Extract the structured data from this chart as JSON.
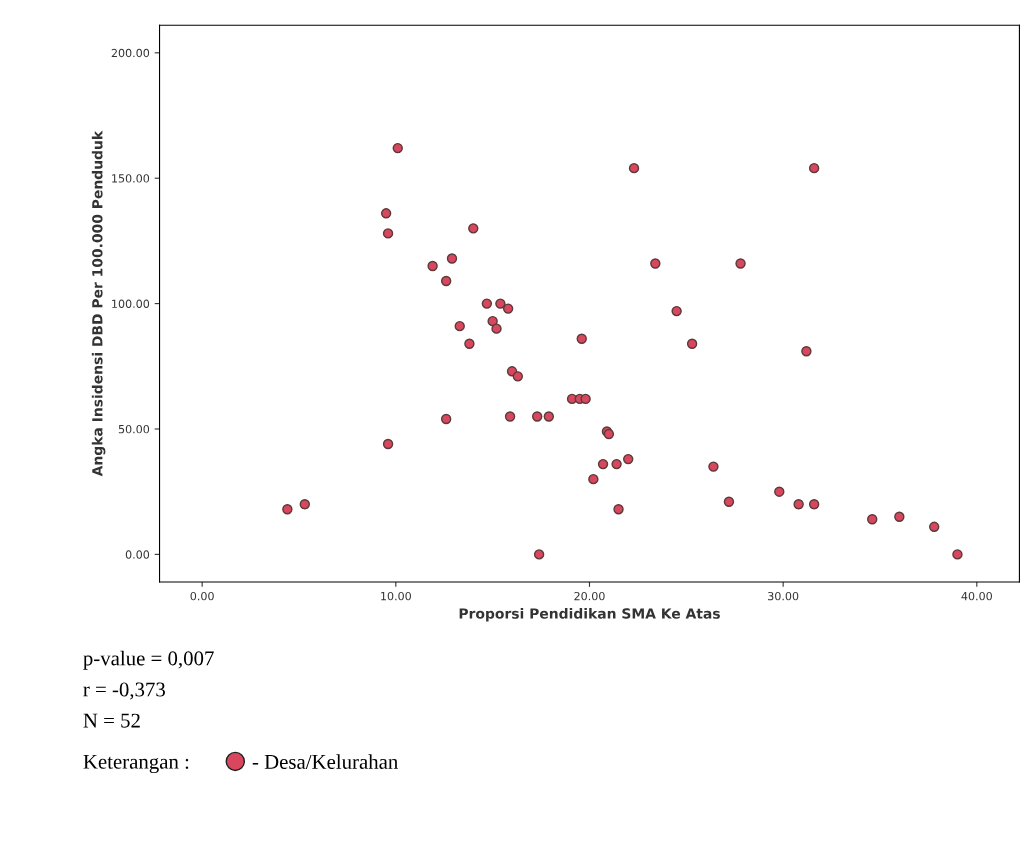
{
  "chart_data": {
    "type": "scatter",
    "xlabel": "Proporsi Pendidikan SMA Ke Atas",
    "ylabel": "Angka Insidensi DBD Per 100.000 Penduduk",
    "xlim": [
      -2.2,
      42.2
    ],
    "ylim": [
      -11,
      211
    ],
    "xticks": [
      {
        "value": 0,
        "label": "0.00"
      },
      {
        "value": 10,
        "label": "10.00"
      },
      {
        "value": 20,
        "label": "20.00"
      },
      {
        "value": 30,
        "label": "30.00"
      },
      {
        "value": 40,
        "label": "40.00"
      }
    ],
    "yticks": [
      {
        "value": 0,
        "label": "0.00"
      },
      {
        "value": 50,
        "label": "50.00"
      },
      {
        "value": 100,
        "label": "100.00"
      },
      {
        "value": 150,
        "label": "150.00"
      },
      {
        "value": 200,
        "label": "200.00"
      }
    ],
    "grid": false,
    "marker": "circle",
    "legend": "bottom left",
    "legend_title": "Keterangan :",
    "annotations": [
      "p-value = 0,007",
      "r = -0,373",
      "N = 52"
    ],
    "series": [
      {
        "name": "- Desa/Kelurahan",
        "color": "#d9475f",
        "x": [
          4.4,
          5.3,
          9.6,
          9.5,
          9.6,
          10.1,
          11.9,
          12.6,
          12.9,
          12.6,
          13.3,
          13.8,
          14.0,
          14.7,
          15.4,
          15.8,
          15.0,
          15.2,
          16.0,
          16.3,
          15.9,
          17.3,
          17.9,
          17.4,
          19.1,
          19.5,
          19.8,
          19.6,
          20.2,
          20.7,
          20.9,
          21.0,
          21.4,
          21.5,
          22.0,
          22.3,
          23.4,
          24.5,
          25.3,
          26.4,
          27.2,
          27.8,
          29.8,
          30.8,
          31.2,
          31.6,
          31.6,
          34.6,
          36.0,
          37.8,
          39.0
        ],
        "values": [
          18,
          20,
          44,
          136,
          128,
          162,
          115,
          109,
          118,
          54,
          91,
          84,
          130,
          100,
          100,
          98,
          93,
          90,
          73,
          71,
          55,
          55,
          55,
          0,
          62,
          62,
          62,
          86,
          30,
          36,
          49,
          48,
          36,
          18,
          38,
          154,
          116,
          97,
          84,
          35,
          21,
          116,
          25,
          20,
          81,
          20,
          154,
          14,
          15,
          11,
          0
        ]
      }
    ]
  }
}
